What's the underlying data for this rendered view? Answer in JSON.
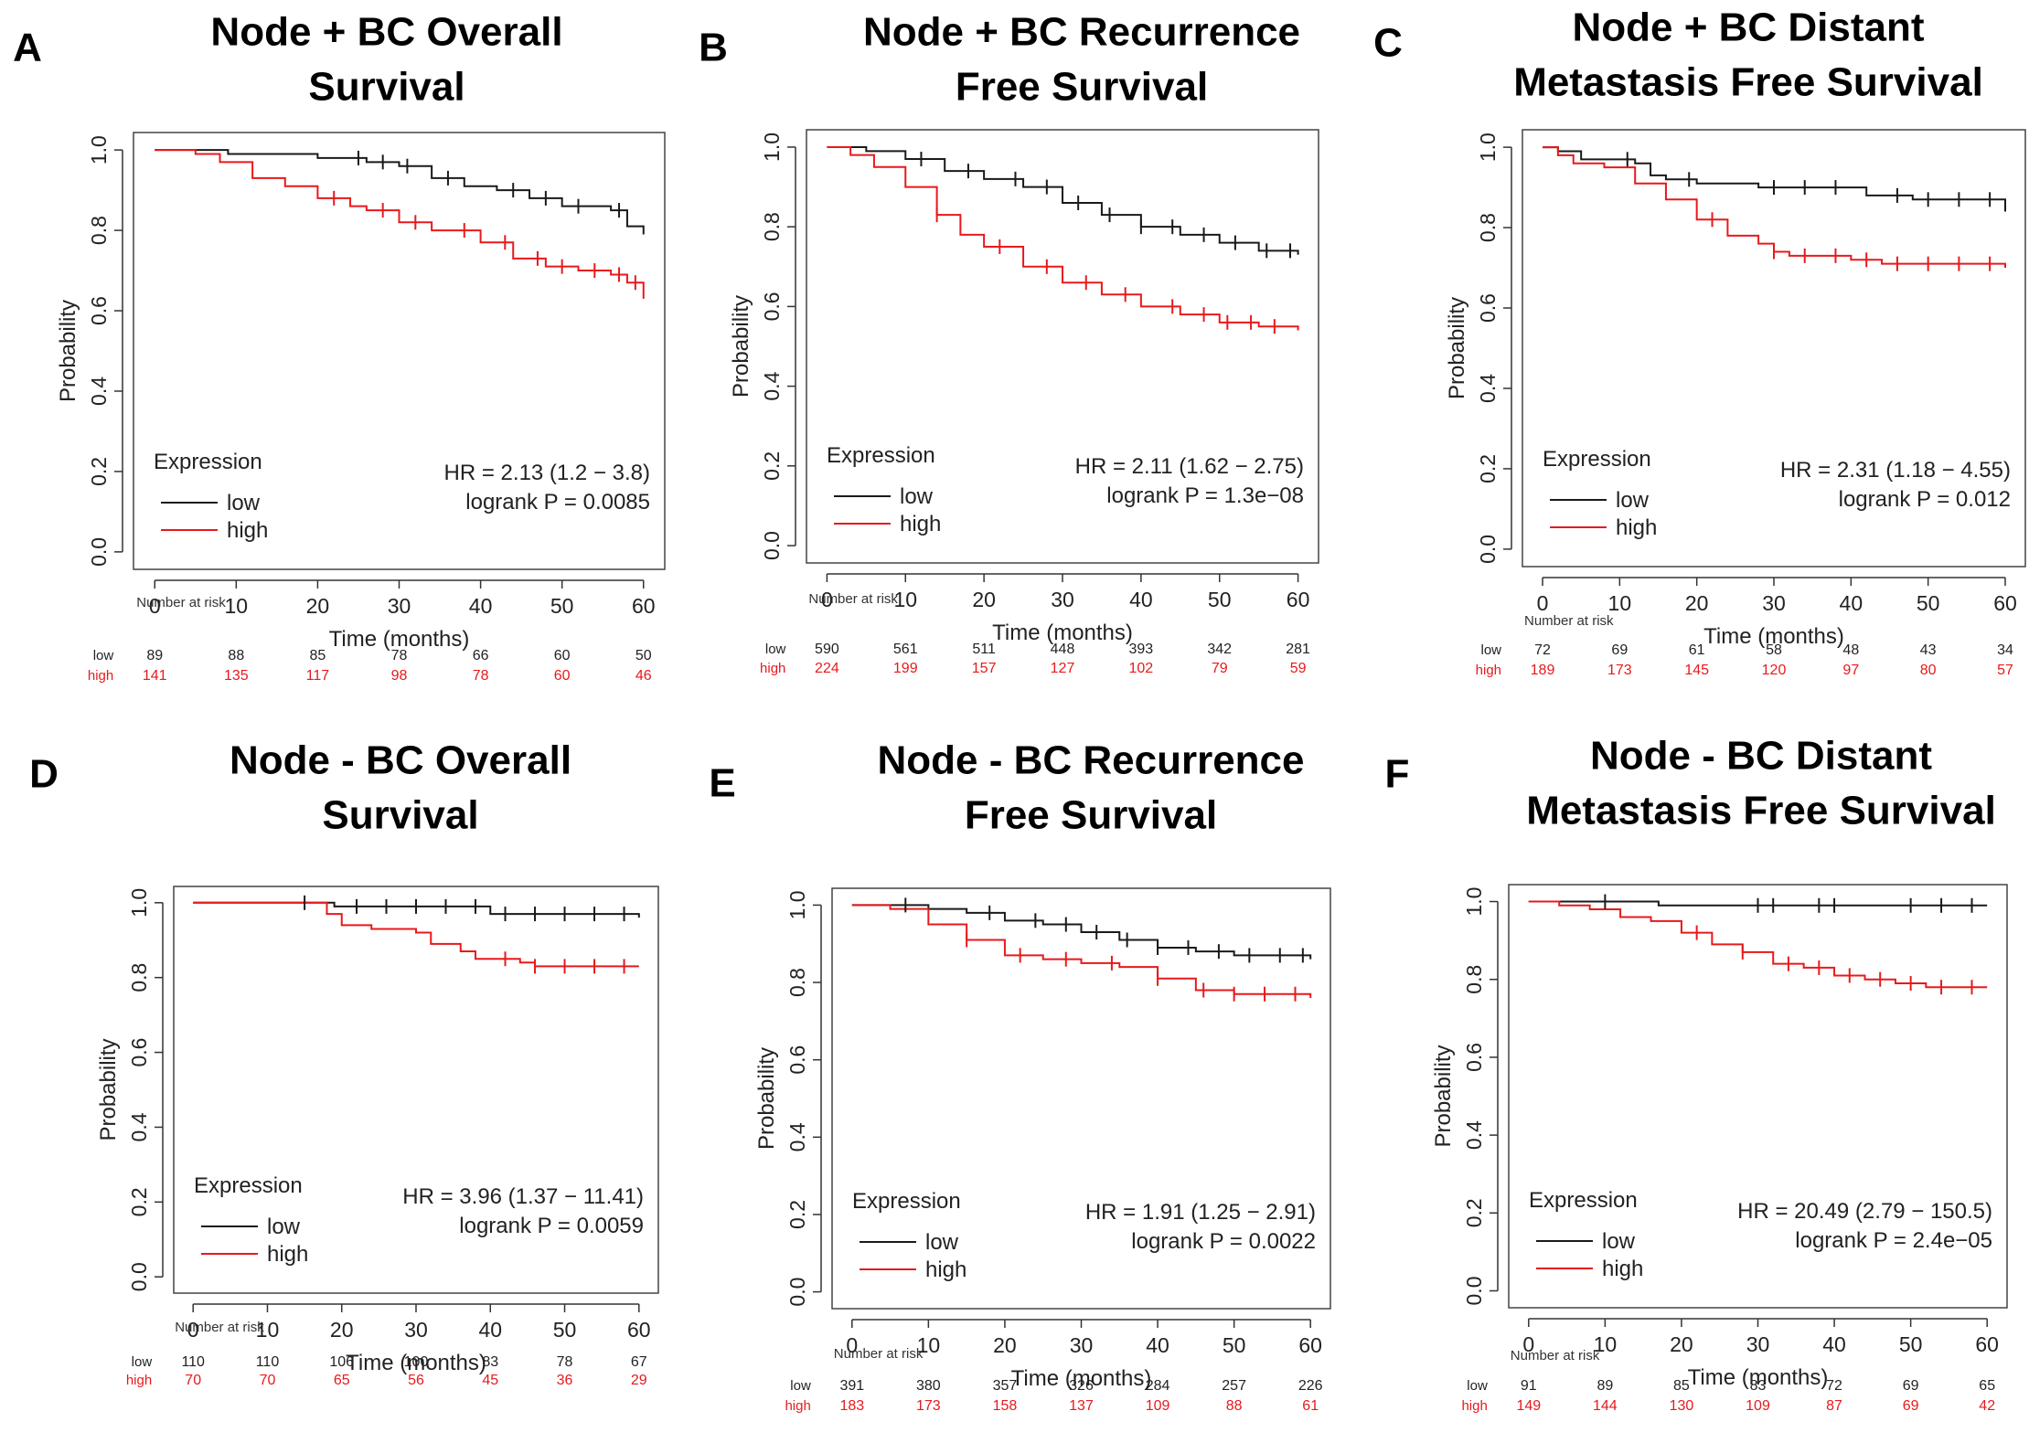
{
  "colors": {
    "low": "#1a1a1a",
    "high": "#e8191c",
    "axis": "#333333",
    "frame": "#444444"
  },
  "common": {
    "xlabel": "Time (months)",
    "ylabel": "Probability",
    "legend_title": "Expression",
    "legend_low": "low",
    "legend_high": "high",
    "risk_title": "Number at risk",
    "risk_low": "low",
    "risk_high": "high"
  },
  "chart_data": [
    {
      "letter": "A",
      "title": [
        "Node + BC Overall",
        "Survival"
      ],
      "type": "line",
      "hr": "HR = 2.13 (1.2 − 3.8)",
      "logrank": "logrank P = 0.0085",
      "xlim": [
        0,
        60
      ],
      "ylim": [
        0,
        1
      ],
      "x_ticks": [
        "0",
        "10",
        "20",
        "30",
        "40",
        "50",
        "60"
      ],
      "y_ticks": [
        "0.0",
        "0.2",
        "0.4",
        "0.6",
        "0.8",
        "1.0"
      ],
      "risk_times": [
        0,
        10,
        20,
        30,
        40,
        50,
        60
      ],
      "risk_low": [
        "89",
        "88",
        "85",
        "78",
        "66",
        "60",
        "50"
      ],
      "risk_high": [
        "141",
        "135",
        "117",
        "98",
        "78",
        "60",
        "46"
      ],
      "series": [
        {
          "name": "low",
          "points": [
            [
              0,
              1
            ],
            [
              8,
              1
            ],
            [
              9,
              0.99
            ],
            [
              20,
              0.98
            ],
            [
              26,
              0.97
            ],
            [
              30,
              0.96
            ],
            [
              34,
              0.93
            ],
            [
              38,
              0.91
            ],
            [
              42,
              0.9
            ],
            [
              46,
              0.88
            ],
            [
              50,
              0.86
            ],
            [
              56,
              0.85
            ],
            [
              58,
              0.81
            ],
            [
              60,
              0.79
            ]
          ]
        },
        {
          "name": "high",
          "points": [
            [
              0,
              1
            ],
            [
              3,
              1
            ],
            [
              5,
              0.99
            ],
            [
              8,
              0.97
            ],
            [
              12,
              0.93
            ],
            [
              16,
              0.91
            ],
            [
              20,
              0.88
            ],
            [
              24,
              0.86
            ],
            [
              26,
              0.85
            ],
            [
              30,
              0.82
            ],
            [
              34,
              0.8
            ],
            [
              40,
              0.77
            ],
            [
              44,
              0.73
            ],
            [
              48,
              0.71
            ],
            [
              52,
              0.7
            ],
            [
              56,
              0.69
            ],
            [
              58,
              0.67
            ],
            [
              60,
              0.63
            ]
          ]
        }
      ],
      "censor_low": [
        25,
        28,
        31,
        36,
        44,
        48,
        52,
        57
      ],
      "censor_high": [
        22,
        28,
        32,
        38,
        43,
        47,
        50,
        54,
        57,
        59
      ]
    },
    {
      "letter": "B",
      "title": [
        "Node + BC Recurrence",
        "Free Survival"
      ],
      "type": "line",
      "hr": "HR = 2.11 (1.62 − 2.75)",
      "logrank": "logrank P = 1.3e−08",
      "xlim": [
        0,
        60
      ],
      "ylim": [
        0,
        1
      ],
      "x_ticks": [
        "0",
        "10",
        "20",
        "30",
        "40",
        "50",
        "60"
      ],
      "y_ticks": [
        "0.0",
        "0.2",
        "0.4",
        "0.6",
        "0.8",
        "1.0"
      ],
      "risk_times": [
        0,
        10,
        20,
        30,
        40,
        50,
        60
      ],
      "risk_low": [
        "590",
        "561",
        "511",
        "448",
        "393",
        "342",
        "281"
      ],
      "risk_high": [
        "224",
        "199",
        "157",
        "127",
        "102",
        "79",
        "59"
      ],
      "series": [
        {
          "name": "low",
          "points": [
            [
              0,
              1
            ],
            [
              5,
              0.99
            ],
            [
              10,
              0.97
            ],
            [
              15,
              0.94
            ],
            [
              20,
              0.92
            ],
            [
              25,
              0.9
            ],
            [
              30,
              0.86
            ],
            [
              35,
              0.83
            ],
            [
              40,
              0.8
            ],
            [
              45,
              0.78
            ],
            [
              50,
              0.76
            ],
            [
              55,
              0.74
            ],
            [
              60,
              0.73
            ]
          ]
        },
        {
          "name": "high",
          "points": [
            [
              0,
              1
            ],
            [
              3,
              0.98
            ],
            [
              6,
              0.95
            ],
            [
              10,
              0.9
            ],
            [
              14,
              0.83
            ],
            [
              17,
              0.78
            ],
            [
              20,
              0.75
            ],
            [
              25,
              0.7
            ],
            [
              30,
              0.66
            ],
            [
              35,
              0.63
            ],
            [
              40,
              0.6
            ],
            [
              45,
              0.58
            ],
            [
              50,
              0.56
            ],
            [
              55,
              0.55
            ],
            [
              60,
              0.54
            ]
          ]
        }
      ],
      "censor_low": [
        12,
        18,
        24,
        28,
        32,
        36,
        40,
        44,
        48,
        52,
        56,
        59
      ],
      "censor_high": [
        14,
        22,
        28,
        33,
        38,
        44,
        48,
        51,
        54,
        57
      ]
    },
    {
      "letter": "C",
      "title": [
        "Node + BC Distant",
        "Metastasis Free Survival"
      ],
      "type": "line",
      "hr": "HR = 2.31 (1.18 − 4.55)",
      "logrank": "logrank P = 0.012",
      "xlim": [
        0,
        60
      ],
      "ylim": [
        0,
        1
      ],
      "x_ticks": [
        "0",
        "10",
        "20",
        "30",
        "40",
        "50",
        "60"
      ],
      "y_ticks": [
        "0.0",
        "0.2",
        "0.4",
        "0.6",
        "0.8",
        "1.0"
      ],
      "risk_times": [
        0,
        10,
        20,
        30,
        40,
        50,
        60
      ],
      "risk_low": [
        "72",
        "69",
        "61",
        "58",
        "48",
        "43",
        "34"
      ],
      "risk_high": [
        "189",
        "173",
        "145",
        "120",
        "97",
        "80",
        "57"
      ],
      "series": [
        {
          "name": "low",
          "points": [
            [
              0,
              1
            ],
            [
              2,
              0.99
            ],
            [
              5,
              0.97
            ],
            [
              10,
              0.97
            ],
            [
              12,
              0.96
            ],
            [
              14,
              0.93
            ],
            [
              16,
              0.92
            ],
            [
              20,
              0.91
            ],
            [
              26,
              0.91
            ],
            [
              28,
              0.9
            ],
            [
              40,
              0.9
            ],
            [
              42,
              0.88
            ],
            [
              48,
              0.87
            ],
            [
              58,
              0.87
            ],
            [
              60,
              0.84
            ]
          ]
        },
        {
          "name": "high",
          "points": [
            [
              0,
              1
            ],
            [
              2,
              0.98
            ],
            [
              4,
              0.96
            ],
            [
              8,
              0.95
            ],
            [
              12,
              0.91
            ],
            [
              16,
              0.87
            ],
            [
              20,
              0.82
            ],
            [
              24,
              0.78
            ],
            [
              28,
              0.76
            ],
            [
              30,
              0.74
            ],
            [
              32,
              0.73
            ],
            [
              40,
              0.72
            ],
            [
              44,
              0.71
            ],
            [
              50,
              0.71
            ],
            [
              60,
              0.7
            ]
          ]
        }
      ],
      "censor_low": [
        11,
        19,
        30,
        34,
        38,
        46,
        50,
        54,
        58
      ],
      "censor_high": [
        22,
        30,
        34,
        38,
        42,
        46,
        50,
        54,
        58
      ]
    },
    {
      "letter": "D",
      "title": [
        "Node - BC Overall",
        "Survival"
      ],
      "type": "line",
      "hr": "HR = 3.96 (1.37 − 11.41)",
      "logrank": "logrank P = 0.0059",
      "xlim": [
        0,
        60
      ],
      "ylim": [
        0,
        1
      ],
      "x_ticks": [
        "0",
        "10",
        "20",
        "30",
        "40",
        "50",
        "60"
      ],
      "y_ticks": [
        "0.0",
        "0.2",
        "0.4",
        "0.6",
        "0.8",
        "1.0"
      ],
      "risk_times": [
        0,
        10,
        20,
        30,
        40,
        50,
        60
      ],
      "risk_low": [
        "110",
        "110",
        "106",
        "100",
        "83",
        "78",
        "67"
      ],
      "risk_high": [
        "70",
        "70",
        "65",
        "56",
        "45",
        "36",
        "29"
      ],
      "series": [
        {
          "name": "low",
          "points": [
            [
              0,
              1
            ],
            [
              18,
              1
            ],
            [
              19,
              0.99
            ],
            [
              38,
              0.99
            ],
            [
              40,
              0.97
            ],
            [
              50,
              0.97
            ],
            [
              58,
              0.97
            ],
            [
              60,
              0.96
            ]
          ]
        },
        {
          "name": "high",
          "points": [
            [
              0,
              1
            ],
            [
              15,
              1
            ],
            [
              18,
              0.97
            ],
            [
              20,
              0.94
            ],
            [
              24,
              0.93
            ],
            [
              30,
              0.92
            ],
            [
              32,
              0.89
            ],
            [
              36,
              0.87
            ],
            [
              38,
              0.85
            ],
            [
              44,
              0.84
            ],
            [
              46,
              0.83
            ],
            [
              60,
              0.83
            ]
          ]
        }
      ],
      "censor_low": [
        15,
        22,
        26,
        30,
        34,
        38,
        42,
        46,
        50,
        54,
        58
      ],
      "censor_high": [
        42,
        46,
        50,
        54,
        58
      ]
    },
    {
      "letter": "E",
      "title": [
        "Node - BC Recurrence",
        "Free Survival"
      ],
      "type": "line",
      "hr": "HR = 1.91 (1.25 − 2.91)",
      "logrank": "logrank P = 0.0022",
      "xlim": [
        0,
        60
      ],
      "ylim": [
        0,
        1
      ],
      "x_ticks": [
        "0",
        "10",
        "20",
        "30",
        "40",
        "50",
        "60"
      ],
      "y_ticks": [
        "0.0",
        "0.2",
        "0.4",
        "0.6",
        "0.8",
        "1.0"
      ],
      "risk_times": [
        0,
        10,
        20,
        30,
        40,
        50,
        60
      ],
      "risk_low": [
        "391",
        "380",
        "357",
        "326",
        "284",
        "257",
        "226"
      ],
      "risk_high": [
        "183",
        "173",
        "158",
        "137",
        "109",
        "88",
        "61"
      ],
      "series": [
        {
          "name": "low",
          "points": [
            [
              0,
              1
            ],
            [
              8,
              1
            ],
            [
              10,
              0.99
            ],
            [
              15,
              0.98
            ],
            [
              20,
              0.96
            ],
            [
              25,
              0.95
            ],
            [
              30,
              0.93
            ],
            [
              35,
              0.91
            ],
            [
              40,
              0.89
            ],
            [
              45,
              0.88
            ],
            [
              50,
              0.87
            ],
            [
              55,
              0.87
            ],
            [
              60,
              0.86
            ]
          ]
        },
        {
          "name": "high",
          "points": [
            [
              0,
              1
            ],
            [
              5,
              0.99
            ],
            [
              10,
              0.95
            ],
            [
              15,
              0.91
            ],
            [
              20,
              0.87
            ],
            [
              25,
              0.86
            ],
            [
              30,
              0.85
            ],
            [
              35,
              0.84
            ],
            [
              40,
              0.81
            ],
            [
              45,
              0.78
            ],
            [
              50,
              0.77
            ],
            [
              55,
              0.77
            ],
            [
              60,
              0.76
            ]
          ]
        }
      ],
      "censor_low": [
        7,
        18,
        24,
        28,
        32,
        36,
        40,
        44,
        48,
        52,
        56,
        59
      ],
      "censor_high": [
        15,
        22,
        28,
        34,
        40,
        46,
        50,
        54,
        58
      ]
    },
    {
      "letter": "F",
      "title": [
        "Node - BC Distant",
        "Metastasis Free Survival"
      ],
      "type": "line",
      "hr": "HR = 20.49 (2.79 − 150.5)",
      "logrank": "logrank P = 2.4e−05",
      "xlim": [
        0,
        60
      ],
      "ylim": [
        0,
        1
      ],
      "x_ticks": [
        "0",
        "10",
        "20",
        "30",
        "40",
        "50",
        "60"
      ],
      "y_ticks": [
        "0.0",
        "0.2",
        "0.4",
        "0.6",
        "0.8",
        "1.0"
      ],
      "risk_times": [
        0,
        10,
        20,
        30,
        40,
        50,
        60
      ],
      "risk_low": [
        "91",
        "89",
        "85",
        "83",
        "72",
        "69",
        "65"
      ],
      "risk_high": [
        "149",
        "144",
        "130",
        "109",
        "87",
        "69",
        "42"
      ],
      "series": [
        {
          "name": "low",
          "points": [
            [
              0,
              1
            ],
            [
              16,
              1
            ],
            [
              17,
              0.99
            ],
            [
              60,
              0.99
            ]
          ]
        },
        {
          "name": "high",
          "points": [
            [
              0,
              1
            ],
            [
              4,
              0.99
            ],
            [
              8,
              0.98
            ],
            [
              12,
              0.96
            ],
            [
              16,
              0.95
            ],
            [
              20,
              0.92
            ],
            [
              24,
              0.89
            ],
            [
              28,
              0.87
            ],
            [
              32,
              0.84
            ],
            [
              36,
              0.83
            ],
            [
              40,
              0.81
            ],
            [
              44,
              0.8
            ],
            [
              48,
              0.79
            ],
            [
              52,
              0.78
            ],
            [
              60,
              0.78
            ]
          ]
        }
      ],
      "censor_low": [
        10,
        30,
        32,
        38,
        40,
        50,
        54,
        58
      ],
      "censor_high": [
        22,
        28,
        34,
        38,
        42,
        46,
        50,
        54,
        58
      ]
    }
  ]
}
